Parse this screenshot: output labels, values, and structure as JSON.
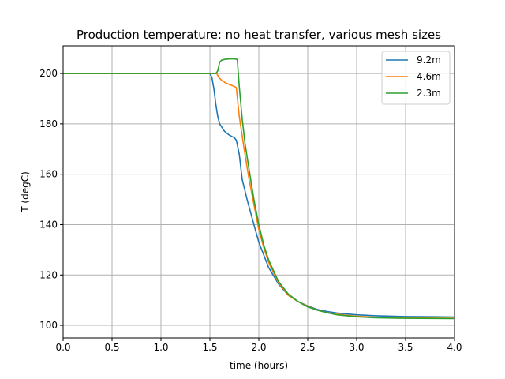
{
  "chart_data": {
    "type": "line",
    "title": "Production temperature: no heat transfer, various mesh sizes",
    "xlabel": "time (hours)",
    "ylabel": "T (degC)",
    "xlim": [
      0,
      4
    ],
    "ylim": [
      95,
      211
    ],
    "xticks": [
      0,
      0.5,
      1,
      1.5,
      2,
      2.5,
      3,
      3.5,
      4
    ],
    "xtick_labels": [
      "0.0",
      "0.5",
      "1.0",
      "1.5",
      "2.0",
      "2.5",
      "3.0",
      "3.5",
      "4.0"
    ],
    "yticks": [
      100,
      120,
      140,
      160,
      180,
      200
    ],
    "ytick_labels": [
      "100",
      "120",
      "140",
      "160",
      "180",
      "200"
    ],
    "grid": true,
    "legend_position": "top-right",
    "series": [
      {
        "name": "9.2m",
        "color": "#1f77b4",
        "x": [
          0,
          1.5,
          1.52,
          1.54,
          1.56,
          1.58,
          1.6,
          1.65,
          1.7,
          1.75,
          1.77,
          1.8,
          1.83,
          1.88,
          1.95,
          2.0,
          2.1,
          2.2,
          2.3,
          2.4,
          2.5,
          2.6,
          2.7,
          2.8,
          3.0,
          3.2,
          3.5,
          3.8,
          4.0
        ],
        "y": [
          200,
          200,
          198.5,
          194,
          188,
          183,
          180,
          177,
          175.5,
          174.5,
          173.5,
          168,
          158,
          150,
          140,
          133,
          123,
          116.5,
          112,
          109.5,
          107.7,
          106.3,
          105.5,
          104.9,
          104.2,
          103.8,
          103.5,
          103.4,
          103.3
        ]
      },
      {
        "name": "4.6m",
        "color": "#ff7f0e",
        "x": [
          0,
          1.57,
          1.59,
          1.62,
          1.66,
          1.7,
          1.74,
          1.77,
          1.8,
          1.85,
          1.9,
          1.95,
          2.0,
          2.05,
          2.1,
          2.2,
          2.3,
          2.4,
          2.5,
          2.6,
          2.7,
          2.8,
          3.0,
          3.2,
          3.5,
          4.0
        ],
        "y": [
          200,
          200,
          198.5,
          197.3,
          196.3,
          195.6,
          195,
          194.4,
          183,
          170,
          158,
          148,
          138,
          131,
          125,
          117,
          112,
          109.5,
          107.5,
          106,
          105,
          104.4,
          103.6,
          103.2,
          103,
          102.8
        ]
      },
      {
        "name": "2.3m",
        "color": "#2ca02c",
        "x": [
          0,
          1.56,
          1.58,
          1.6,
          1.62,
          1.65,
          1.7,
          1.75,
          1.78,
          1.8,
          1.83,
          1.86,
          1.9,
          1.95,
          2.0,
          2.05,
          2.1,
          2.2,
          2.3,
          2.4,
          2.5,
          2.6,
          2.7,
          2.8,
          3.0,
          3.2,
          3.5,
          4.0
        ],
        "y": [
          200,
          200,
          201,
          204.5,
          205.3,
          205.6,
          205.8,
          205.8,
          205.6,
          195,
          182,
          172,
          162,
          150,
          140,
          132,
          126,
          117.5,
          112.5,
          109.5,
          107.3,
          106,
          105,
          104.2,
          103.4,
          103,
          102.8,
          102.7
        ]
      }
    ]
  }
}
